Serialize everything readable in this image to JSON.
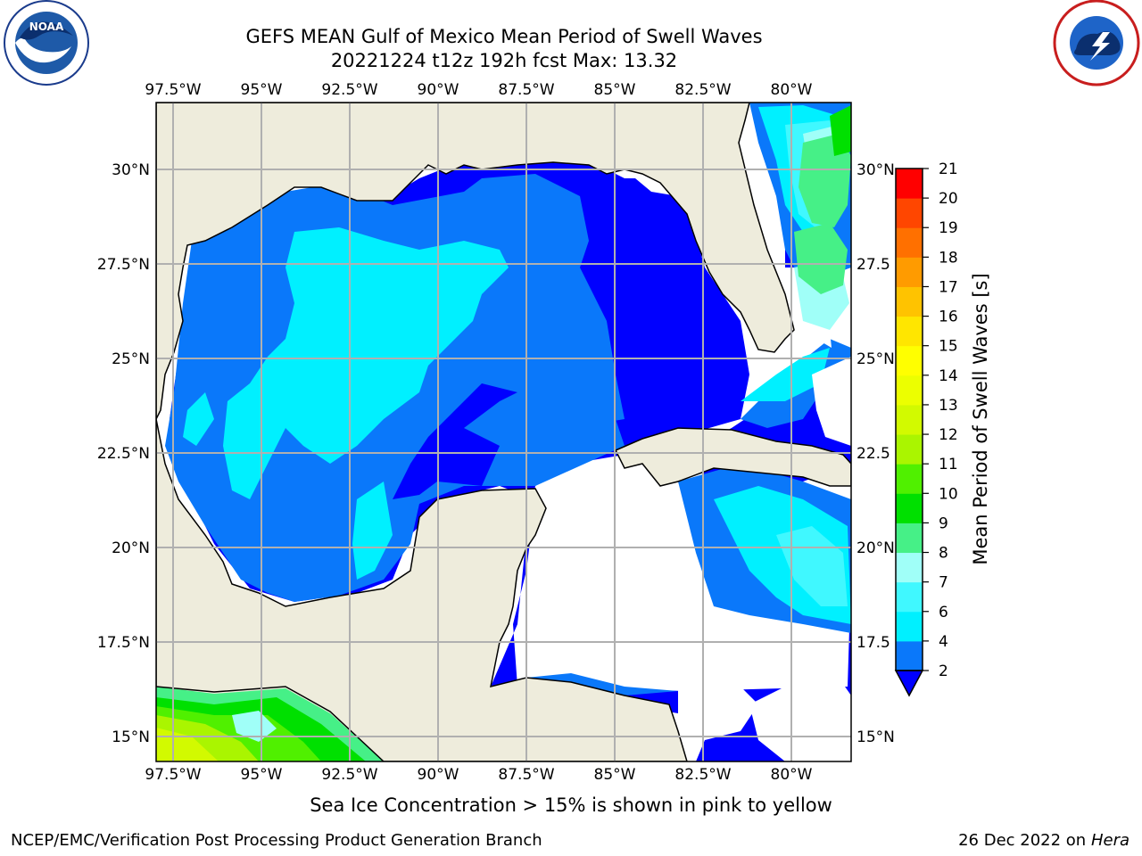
{
  "header": {
    "title": "GEFS MEAN Gulf of Mexico Mean Period of Swell Waves",
    "subtitle": "20221224 t12z 192h fcst   Max: 13.32"
  },
  "logos": {
    "left": "noaa-logo",
    "right": "national-weather-service-logo"
  },
  "map": {
    "lon_ticks": [
      "97.5°W",
      "95°W",
      "92.5°W",
      "90°W",
      "87.5°W",
      "85°W",
      "82.5°W",
      "80°W"
    ],
    "lat_ticks": [
      "30°N",
      "27.5°N",
      "25°N",
      "22.5°N",
      "20°N",
      "17.5°N",
      "15°N"
    ],
    "lat_ticks_right": [
      "30°N",
      "27.5",
      "25°N",
      "22.5",
      "20°N",
      "17.5",
      "15°N"
    ],
    "land_color": "#eeecdc",
    "grid_color": "#b0b0b0"
  },
  "colorbar": {
    "label": "Mean Period of Swell Waves [s]",
    "levels": [
      "2",
      "4",
      "6",
      "7",
      "8",
      "9",
      "10",
      "11",
      "12",
      "13",
      "14",
      "15",
      "16",
      "17",
      "18",
      "19",
      "20",
      "21"
    ],
    "colors": [
      "#0a78fa",
      "#00f0ff",
      "#40f8ff",
      "#a0fff8",
      "#46f087",
      "#00e000",
      "#50f000",
      "#aaf500",
      "#d2fa00",
      "#ecff00",
      "#ffff00",
      "#ffe600",
      "#ffc300",
      "#ff9b00",
      "#ff7000",
      "#ff4600",
      "#ff0000"
    ],
    "extend_color": "#0000ff"
  },
  "footer": {
    "note": "Sea Ice Concentration > 15% is shown in pink to yellow",
    "credit": "NCEP/EMC/Verification Post Processing Product Generation Branch",
    "date": "26 Dec 2022 on",
    "host": "Hera"
  }
}
